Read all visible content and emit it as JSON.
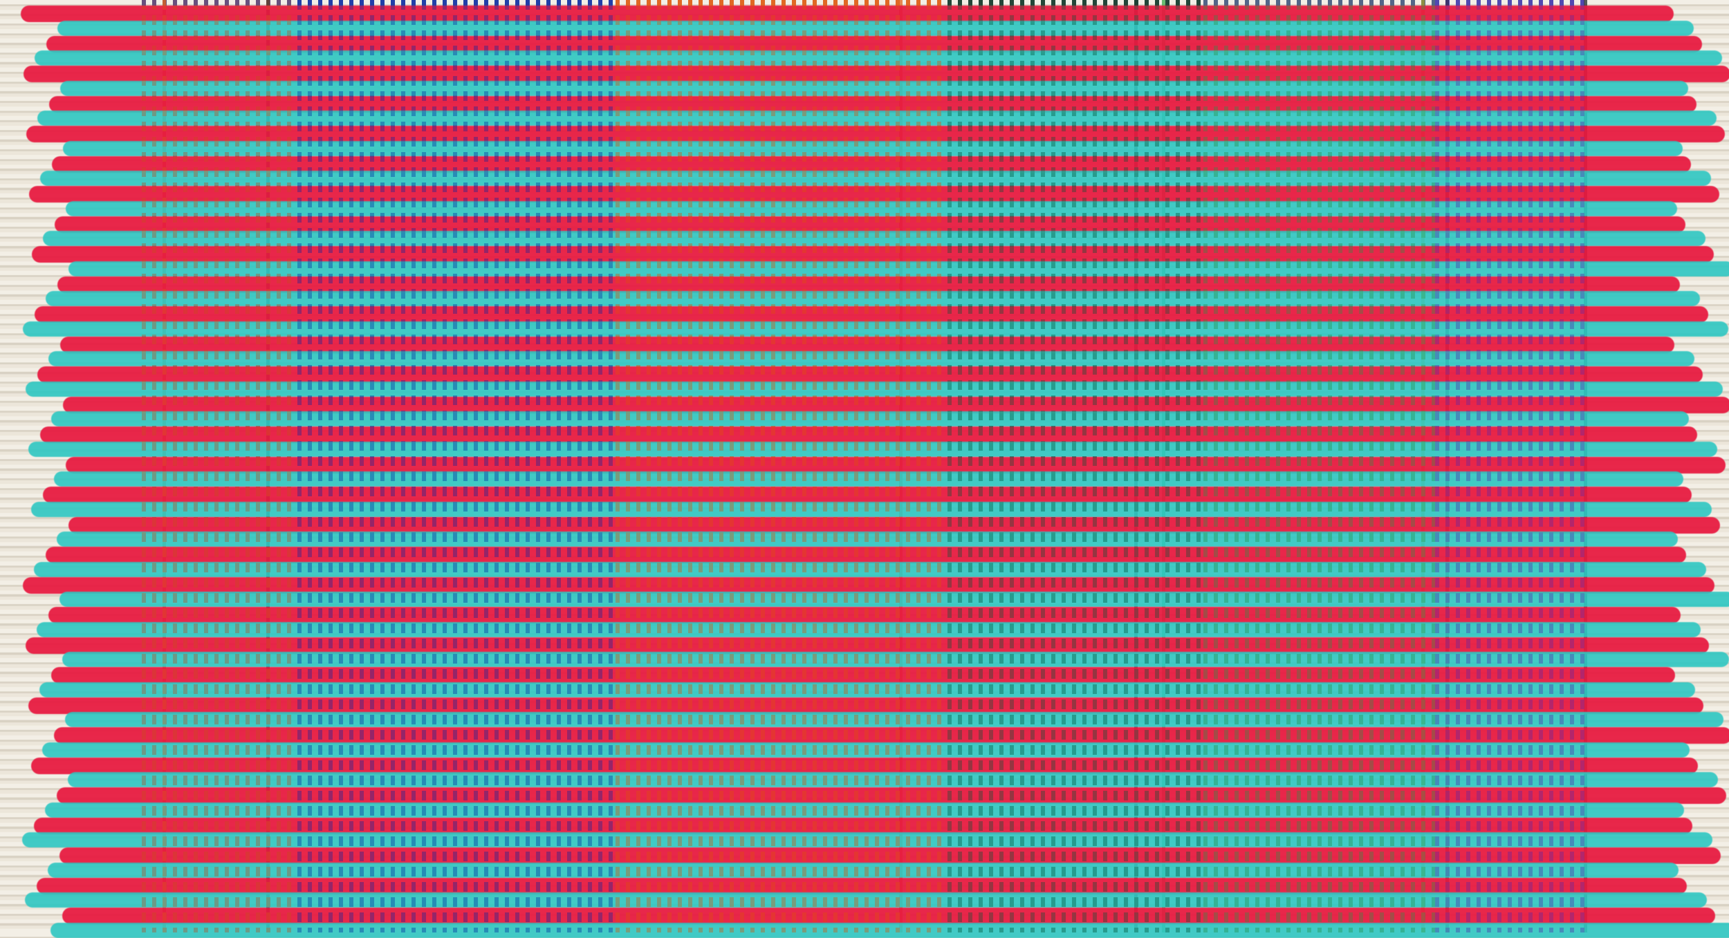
{
  "artwork": {
    "stripe_colors": [
      "#e8183f",
      "#2ec7c2"
    ],
    "dot_zones": [
      {
        "color": "#1f3fb0",
        "accent": "#e0641e"
      },
      {
        "color": "#1b3aa8",
        "accent": "#1b3aa8"
      },
      {
        "color": "#e0641e",
        "accent": "#e0641e"
      },
      {
        "color": "#1d2a26",
        "accent": "#1a6a4a"
      },
      {
        "color": "#5b3aa8",
        "accent": "#3aa84a"
      },
      {
        "color": "#3a4ab0",
        "accent": "#6a3ab0"
      }
    ],
    "background": "#ece6da"
  }
}
